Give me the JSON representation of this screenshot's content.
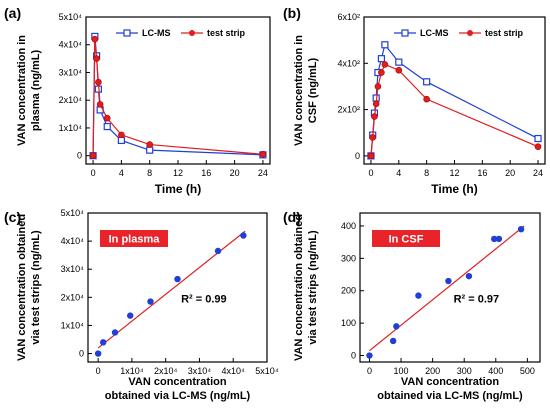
{
  "chart_data": [
    {
      "panel": "(a)",
      "type": "line",
      "xlabel": "Time (h)",
      "ylabel": [
        "VAN concentration in",
        "plasma (ng/mL)"
      ],
      "xlim": [
        -1,
        25
      ],
      "ylim": [
        -3000,
        50000
      ],
      "xticks": [
        "0",
        "4",
        "8",
        "12",
        "16",
        "20",
        "24"
      ],
      "xtick_values": [
        0,
        4,
        8,
        12,
        16,
        20,
        24
      ],
      "yticks": [
        "0",
        "1x10⁴",
        "2x10⁴",
        "3x10⁴",
        "4x10⁴",
        "5x10⁴"
      ],
      "ytick_values": [
        0,
        10000,
        20000,
        30000,
        40000,
        50000
      ],
      "legend_position": "top-right",
      "series": [
        {
          "name": "LC-MS",
          "color": "#1f3fd6",
          "marker": "square",
          "x": [
            0,
            0.25,
            0.5,
            0.75,
            1,
            2,
            4,
            8,
            24
          ],
          "y": [
            0,
            43000,
            36000,
            24000,
            16500,
            10500,
            5500,
            2000,
            300
          ]
        },
        {
          "name": "test strip",
          "color": "#e11d1d",
          "marker": "circle",
          "x": [
            0,
            0.25,
            0.5,
            0.75,
            1,
            2,
            4,
            8,
            24
          ],
          "y": [
            0,
            42000,
            35000,
            26500,
            18500,
            13500,
            7500,
            4000,
            500
          ]
        }
      ]
    },
    {
      "panel": "(b)",
      "type": "line",
      "xlabel": "Time (h)",
      "ylabel": [
        "VAN concentration in",
        "CSF (ng/mL)"
      ],
      "xlim": [
        -1,
        25
      ],
      "ylim": [
        -35,
        600
      ],
      "xticks": [
        "0",
        "4",
        "8",
        "12",
        "16",
        "20",
        "24"
      ],
      "xtick_values": [
        0,
        4,
        8,
        12,
        16,
        20,
        24
      ],
      "yticks": [
        "0",
        "2x10²",
        "4x10²",
        "6x10²"
      ],
      "ytick_values": [
        0,
        200,
        400,
        600
      ],
      "legend_position": "top-right",
      "series": [
        {
          "name": "LC-MS",
          "color": "#1f3fd6",
          "marker": "square",
          "x": [
            0,
            0.25,
            0.5,
            0.75,
            1,
            1.5,
            2,
            4,
            8,
            24
          ],
          "y": [
            0,
            90,
            185,
            250,
            360,
            420,
            480,
            405,
            320,
            75
          ]
        },
        {
          "name": "test strip",
          "color": "#e11d1d",
          "marker": "circle",
          "x": [
            0,
            0.25,
            0.5,
            0.75,
            1,
            1.5,
            2,
            4,
            8,
            24
          ],
          "y": [
            0,
            80,
            170,
            225,
            300,
            360,
            395,
            370,
            245,
            40
          ]
        }
      ]
    },
    {
      "panel": "(c)",
      "type": "scatter",
      "xlabel": [
        "VAN concentration",
        "obtained via LC-MS (ng/mL)"
      ],
      "ylabel": [
        "VAN concentration obtained",
        "via test strips (ng/mL)"
      ],
      "xlim": [
        -3000,
        50000
      ],
      "ylim": [
        -3000,
        50000
      ],
      "xticks": [
        "0",
        "1x10⁴",
        "2x10⁴",
        "3x10⁴",
        "4x10⁴",
        "5x10⁴"
      ],
      "xtick_values": [
        0,
        10000,
        20000,
        30000,
        40000,
        50000
      ],
      "yticks": [
        "0",
        "1x10⁴",
        "2x10⁴",
        "3x10⁴",
        "4x10⁴",
        "5x10⁴"
      ],
      "ytick_values": [
        0,
        10000,
        20000,
        30000,
        40000,
        50000
      ],
      "label_box": "In plasma",
      "r2_label": "R² = 0.99",
      "fit_line": {
        "x": [
          0,
          43500
        ],
        "y": [
          2000,
          43500
        ],
        "color": "#e11d1d"
      },
      "points_color": "#1f3fd6",
      "x": [
        0,
        1500,
        5000,
        9500,
        15500,
        23500,
        35500,
        43000
      ],
      "y": [
        0,
        4000,
        7500,
        13500,
        18500,
        26500,
        36500,
        42000
      ]
    },
    {
      "panel": "(d)",
      "type": "scatter",
      "xlabel": [
        "VAN concentration",
        "obtained via LC-MS (ng/mL)"
      ],
      "ylabel": [
        "VAN concentration obtained",
        "via test strips (ng/mL)"
      ],
      "xlim": [
        -30,
        540
      ],
      "ylim": [
        -20,
        440
      ],
      "xticks": [
        "0",
        "100",
        "200",
        "300",
        "400",
        "500"
      ],
      "xtick_values": [
        0,
        100,
        200,
        300,
        400,
        500
      ],
      "yticks": [
        "0",
        "100",
        "200",
        "300",
        "400"
      ],
      "ytick_values": [
        0,
        100,
        200,
        300,
        400
      ],
      "label_box": "In CSF",
      "r2_label": "R² = 0.97",
      "fit_line": {
        "x": [
          0,
          490
        ],
        "y": [
          15,
          400
        ],
        "color": "#e11d1d"
      },
      "points_color": "#1f3fd6",
      "x": [
        0,
        75,
        85,
        155,
        250,
        315,
        395,
        410,
        480
      ],
      "y": [
        0,
        45,
        90,
        185,
        230,
        245,
        360,
        360,
        390
      ]
    }
  ]
}
